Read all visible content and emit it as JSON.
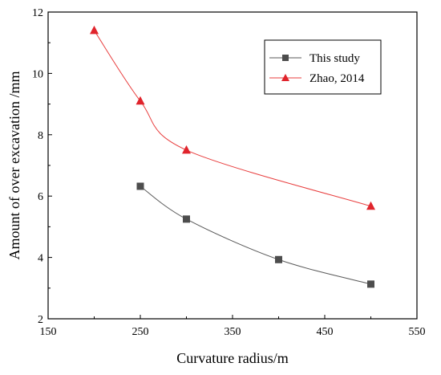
{
  "chart_data": {
    "type": "line",
    "xlabel": "Curvature radius/m",
    "ylabel": "Amount of over excavation /mm",
    "xlim": [
      150,
      550
    ],
    "ylim": [
      2,
      12
    ],
    "xticks": [
      150,
      250,
      350,
      450,
      550
    ],
    "yticks": [
      2,
      4,
      6,
      8,
      10,
      12
    ],
    "grid": false,
    "legend_position": "top-right",
    "series": [
      {
        "name": "This study",
        "marker": "square",
        "color": "#595959",
        "marker_color": "#4d4d4d",
        "x": [
          250,
          300,
          400,
          500
        ],
        "y": [
          6.32,
          5.25,
          3.93,
          3.13
        ]
      },
      {
        "name": "Zhao, 2014",
        "marker": "triangle",
        "color": "#e83e3e",
        "marker_color": "#e0242c",
        "x": [
          200,
          250,
          300,
          500
        ],
        "y": [
          11.4,
          9.1,
          7.5,
          5.67
        ]
      }
    ]
  }
}
